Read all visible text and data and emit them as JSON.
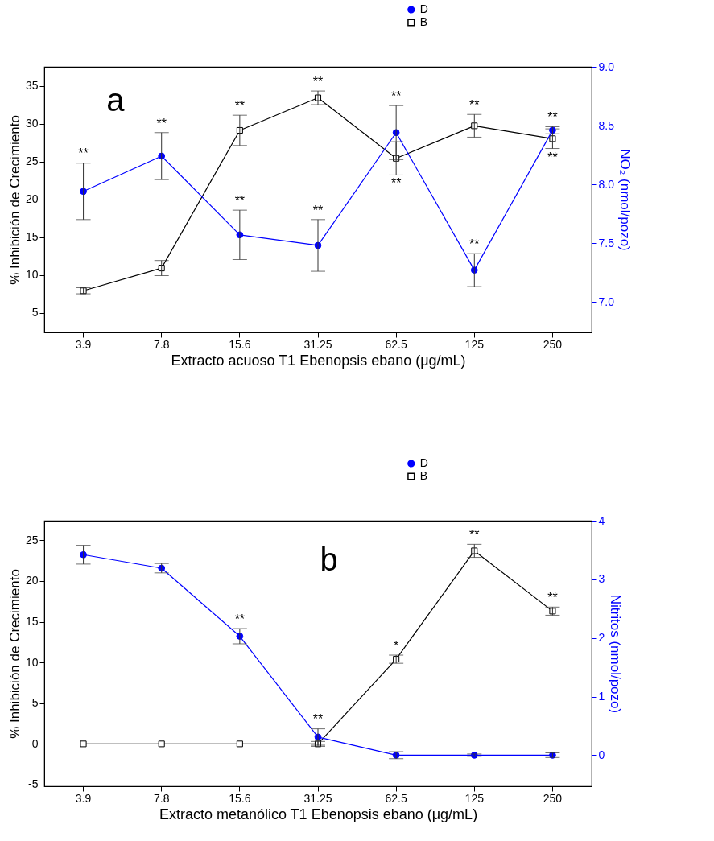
{
  "chart_data": [
    {
      "type": "line",
      "categories": [
        "3.9",
        "7.8",
        "15.6",
        "31.25",
        "62.5",
        "125",
        "250"
      ],
      "xlabel": "Extracto acuoso T1 Ebenopsis ebano (μg/mL)",
      "ylabel": "% Inhibición de Crecimiento",
      "y2label": "NO₂ (nmol/pozo)",
      "series": [
        {
          "name": "D",
          "color": "#0000ff",
          "axis": "y2",
          "marker": "circle",
          "values": [
            7.94,
            8.24,
            7.57,
            7.48,
            8.44,
            7.27,
            8.46
          ],
          "errors": [
            0.24,
            0.2,
            0.21,
            0.22,
            0.23,
            0.14,
            0.03
          ]
        },
        {
          "name": "B",
          "color": "#000000",
          "marker": "square",
          "values": [
            7.9,
            10.9,
            29.1,
            33.4,
            25.4,
            29.7,
            28.0
          ],
          "errors": [
            0.4,
            1.0,
            2.0,
            0.9,
            2.2,
            1.5,
            1.3
          ]
        }
      ],
      "ylim": [
        2.4,
        37.5
      ],
      "yticks": [
        5,
        10,
        15,
        20,
        25,
        30,
        35
      ],
      "y2lim": [
        6.74,
        9.0
      ],
      "y2ticks": [
        {
          "value": 7,
          "label": "7.0"
        },
        {
          "value": 7.5,
          "label": "7.5"
        },
        {
          "value": 8,
          "label": "8.0"
        },
        {
          "value": 8.5,
          "label": "8.5"
        },
        {
          "value": 9,
          "label": "9.0"
        }
      ],
      "legend": "top right",
      "annotations": [
        "a",
        {
          "text": "**",
          "x": "3.9",
          "y": 24.8
        },
        {
          "text": "**",
          "x": "7.8",
          "y": 28.8
        },
        {
          "text": "**",
          "x": "15.6",
          "y": 31.1
        },
        {
          "text": "**",
          "x": "15.6",
          "y": 18.6
        },
        {
          "text": "**",
          "x": "31.25",
          "y": 34.3
        },
        {
          "text": "**",
          "x": "31.25",
          "y": 17.3
        },
        {
          "text": "**",
          "x": "62.5",
          "y": 32.4
        },
        {
          "text": "**",
          "x": "62.5",
          "y": 23.2
        },
        {
          "text": "**",
          "x": "125",
          "y": 31.2
        },
        {
          "text": "**",
          "x": "125",
          "y": 12.8
        },
        {
          "text": "**",
          "x": "250",
          "y": 29.6
        },
        {
          "text": "**",
          "x": "250",
          "y": 26.7
        }
      ]
    },
    {
      "type": "line",
      "categories": [
        "3.9",
        "7.8",
        "15.6",
        "31.25",
        "62.5",
        "125",
        "250"
      ],
      "xlabel": "Extracto metanólico T1 Ebenopsis ebano (μg/mL)",
      "ylabel": "% Inhibición de Crecimiento",
      "y2label": "Nitritos (nmol/pozo)",
      "series": [
        {
          "name": "D",
          "color": "#0000ff",
          "axis": "y2",
          "marker": "circle",
          "values": [
            3.42,
            3.19,
            2.03,
            0.31,
            0,
            0,
            0
          ],
          "errors": [
            0.16,
            0.08,
            0.13,
            0.14,
            0.06,
            0.02,
            0.04
          ]
        },
        {
          "name": "B",
          "color": "#000000",
          "marker": "square",
          "values": [
            0,
            0,
            0,
            0,
            10.4,
            23.7,
            16.3
          ],
          "errors": [
            null,
            null,
            null,
            0.3,
            0.5,
            0.8,
            0.5
          ]
        }
      ],
      "ylim": [
        -5.2,
        27.4
      ],
      "yticks": [
        -5,
        0,
        5,
        10,
        15,
        20,
        25
      ],
      "y2lim": [
        -0.53,
        4
      ],
      "y2ticks": [
        0,
        1,
        2,
        3,
        4
      ],
      "legend": "top right",
      "annotations": [
        "b",
        {
          "text": "**",
          "x": "15.6",
          "y": 14.2
        },
        {
          "text": "**",
          "x": "31.25",
          "y": 1.9
        },
        {
          "text": "*",
          "x": "62.5",
          "y": 10.9
        },
        {
          "text": "**",
          "x": "125",
          "y": 24.5
        },
        {
          "text": "**",
          "x": "250",
          "y": 16.8
        }
      ]
    }
  ]
}
